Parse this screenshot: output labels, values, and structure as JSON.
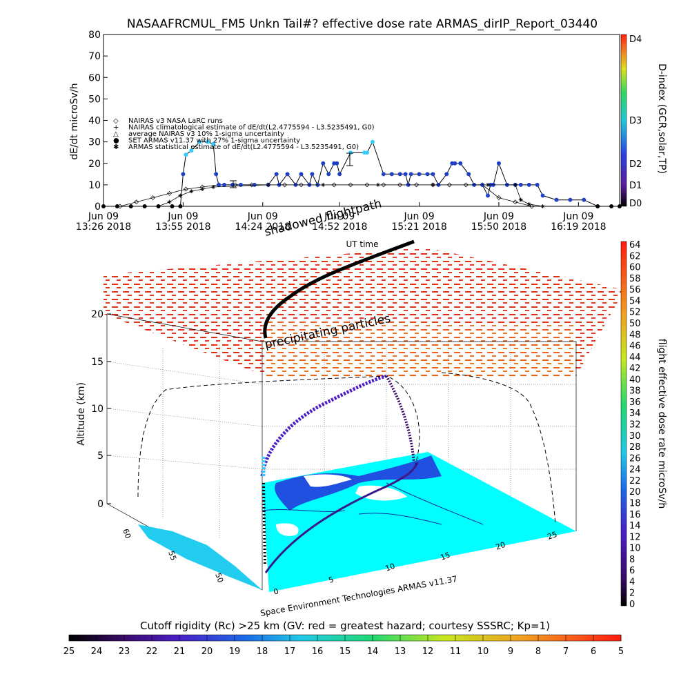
{
  "title": "NASAAFRCMUL_FM5 Unkn Tail#? effective dose rate ARMAS_dirIP_Report_03440",
  "colors": {
    "cyan": "#33ccff",
    "blue": "#2040c8",
    "purple": "#5a1a9a",
    "red": "#e82010",
    "black": "#000000"
  },
  "chart_data": [
    {
      "type": "line",
      "name": "time-series",
      "ylabel": "dE/dt microSv/h",
      "xlabel": "UT time",
      "ylim": [
        0,
        80
      ],
      "yticks": [
        0,
        10,
        20,
        30,
        40,
        50,
        60,
        70,
        80
      ],
      "xticks": [
        {
          "t": 0,
          "l1": "Jun 09",
          "l2": "13:26  2018"
        },
        {
          "t": 29,
          "l1": "Jun 09",
          "l2": "13:55  2018"
        },
        {
          "t": 58,
          "l1": "Jun 09",
          "l2": "14:24  2018"
        },
        {
          "t": 86,
          "l1": "Jun 09",
          "l2": "14:52  2018"
        },
        {
          "t": 115,
          "l1": "Jun 09",
          "l2": "15:21  2018"
        },
        {
          "t": 144,
          "l1": "Jun 09",
          "l2": "15:50  2018"
        },
        {
          "t": 173,
          "l1": "Jun 09",
          "l2": "16:19  2018"
        }
      ],
      "legend": [
        "NAIRAS v3 NASA LaRC runs",
        "NAIRAS climatological estimate of dE/dt(L2.4775594 - L3.5235491, G0)",
        "average NAIRAS v3 10% 1-sigma uncertainty",
        "SET ARMAS v11.37 with 27% 1-sigma uncertainty",
        "ARMAS statistical estimate of dE/dt(L2.4775594 - L3.5235491, G0)"
      ],
      "right_axis": {
        "label": "D-index (GCR,solar,TP)",
        "ticks": [
          "D0",
          "D1",
          "D2",
          "D3",
          "D4"
        ]
      },
      "series": [
        {
          "name": "NAIRAS v3 NASA LaRC runs",
          "x": [
            6,
            12,
            18,
            24,
            30,
            36,
            42,
            48,
            54,
            60,
            66,
            72,
            78,
            84,
            90,
            96,
            102,
            108,
            114,
            120,
            126,
            132,
            138,
            144,
            150,
            156
          ],
          "y": [
            0,
            2,
            4,
            6,
            8,
            9,
            10,
            10,
            10,
            10,
            10,
            10,
            10,
            10,
            10,
            10,
            10,
            10,
            10,
            10,
            10,
            10,
            10,
            4,
            2,
            0
          ]
        },
        {
          "name": "SET ARMAS v11.37 with 27% 1-sigma uncertainty",
          "x": [
            0,
            5,
            10,
            15,
            20,
            25,
            28,
            29,
            30,
            32,
            35,
            38,
            40,
            41,
            42,
            44,
            47,
            50,
            55,
            60,
            63,
            64,
            67,
            70,
            72,
            75,
            76,
            78,
            80,
            82,
            84,
            85,
            86,
            90,
            95,
            96,
            98,
            102,
            105,
            108,
            110,
            111,
            112,
            115,
            118,
            120,
            122,
            125,
            127,
            128,
            130,
            133,
            135,
            138,
            140,
            141,
            142,
            144,
            147,
            150,
            152,
            155,
            158,
            160,
            165,
            170,
            175,
            180,
            185,
            188
          ],
          "y": [
            0,
            0,
            0,
            0,
            0,
            0,
            0,
            15,
            24,
            26,
            30,
            30,
            29,
            15,
            10,
            10,
            10,
            10,
            10,
            10,
            15,
            10,
            15,
            10,
            15,
            10,
            15,
            10,
            20,
            15,
            20,
            20,
            15,
            25,
            25,
            25,
            30,
            15,
            15,
            15,
            15,
            10,
            15,
            15,
            15,
            15,
            10,
            15,
            20,
            20,
            20,
            15,
            10,
            10,
            5,
            10,
            10,
            20,
            10,
            10,
            10,
            10,
            10,
            5,
            3,
            3,
            3,
            0,
            0,
            0
          ]
        },
        {
          "name": "ARMAS statistical estimate of dE/dt(L2.4775594 - L3.5235491, G0)",
          "x": [
            0,
            20,
            24,
            28,
            32,
            36,
            40,
            60,
            80,
            100,
            120,
            140,
            150,
            152,
            155,
            160
          ],
          "y": [
            0,
            0,
            2,
            5,
            7,
            8,
            9,
            10,
            10,
            10,
            10,
            10,
            10,
            3,
            1,
            0
          ]
        }
      ]
    },
    {
      "type": "scatter",
      "name": "3d-flight-view",
      "zlabel": "Altitude (km)",
      "zticks": [
        0,
        5,
        10,
        15,
        20
      ],
      "x_ticks": [
        0,
        5,
        10,
        15,
        20,
        25
      ],
      "y_ticks": [
        50,
        55,
        60
      ],
      "annotations": [
        "shadowed flightpath",
        "precipitating particles"
      ],
      "credit": "Space Environment Technologies ARMAS v11.37",
      "colorbar": {
        "label": "flight effective dose rate microSv/h",
        "ticks": [
          0,
          2,
          4,
          6,
          8,
          10,
          12,
          14,
          16,
          18,
          20,
          22,
          24,
          26,
          28,
          30,
          32,
          34,
          36,
          38,
          40,
          42,
          44,
          46,
          48,
          50,
          52,
          54,
          56,
          58,
          60,
          62,
          64
        ]
      }
    },
    {
      "type": "heatmap",
      "name": "cutoff-rigidity-colorbar",
      "title": "Cutoff rigidity (Rc) >25 km (GV: red = greatest hazard; courtesy SSSRC; Kp=1)",
      "ticks": [
        25,
        24,
        23,
        22,
        21,
        20,
        19,
        18,
        17,
        16,
        15,
        14,
        13,
        12,
        11,
        10,
        9,
        8,
        7,
        6,
        5
      ]
    }
  ]
}
